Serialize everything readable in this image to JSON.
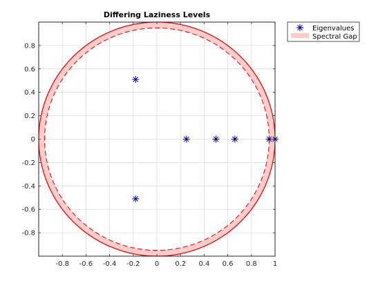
{
  "chart_data": {
    "type": "scatter",
    "title": "Differing Laziness Levels",
    "xlabel": "",
    "ylabel": "",
    "xlim": [
      -1,
      1
    ],
    "ylim": [
      -1,
      1
    ],
    "grid": true,
    "legend_placement": "outside-top-right",
    "x_ticks": [
      -0.8,
      -0.6,
      -0.4,
      -0.2,
      0,
      0.2,
      0.4,
      0.6,
      0.8,
      1
    ],
    "x_tick_labels": [
      "-0.8",
      "-0.6",
      "-0.4",
      "-0.2",
      "0",
      "0.2",
      "0.4",
      "0.6",
      "0.8",
      "1"
    ],
    "y_ticks": [
      0.8,
      0.6,
      0.4,
      0.2,
      0,
      -0.2,
      -0.4,
      -0.6,
      -0.8
    ],
    "y_tick_labels": [
      "0.8",
      "0.6",
      "0.4",
      "0.2",
      "0",
      "-0.2",
      "-0.4",
      "-0.6",
      "-0.8"
    ],
    "series": [
      {
        "name": "Eigenvalues",
        "marker": "asterisk",
        "color": "#00008b",
        "points": [
          {
            "x": -0.18,
            "y": 0.51
          },
          {
            "x": -0.18,
            "y": -0.51
          },
          {
            "x": 0.25,
            "y": 0
          },
          {
            "x": 0.5,
            "y": 0
          },
          {
            "x": 0.66,
            "y": 0
          },
          {
            "x": 0.95,
            "y": 0
          },
          {
            "x": 1.0,
            "y": 0
          }
        ]
      }
    ],
    "spectral_gap": {
      "name": "Spectral Gap",
      "outer_radius": 1.0,
      "inner_radius": 0.95,
      "fill_color": "#ffcccc",
      "edge_color": "#e00000"
    }
  }
}
